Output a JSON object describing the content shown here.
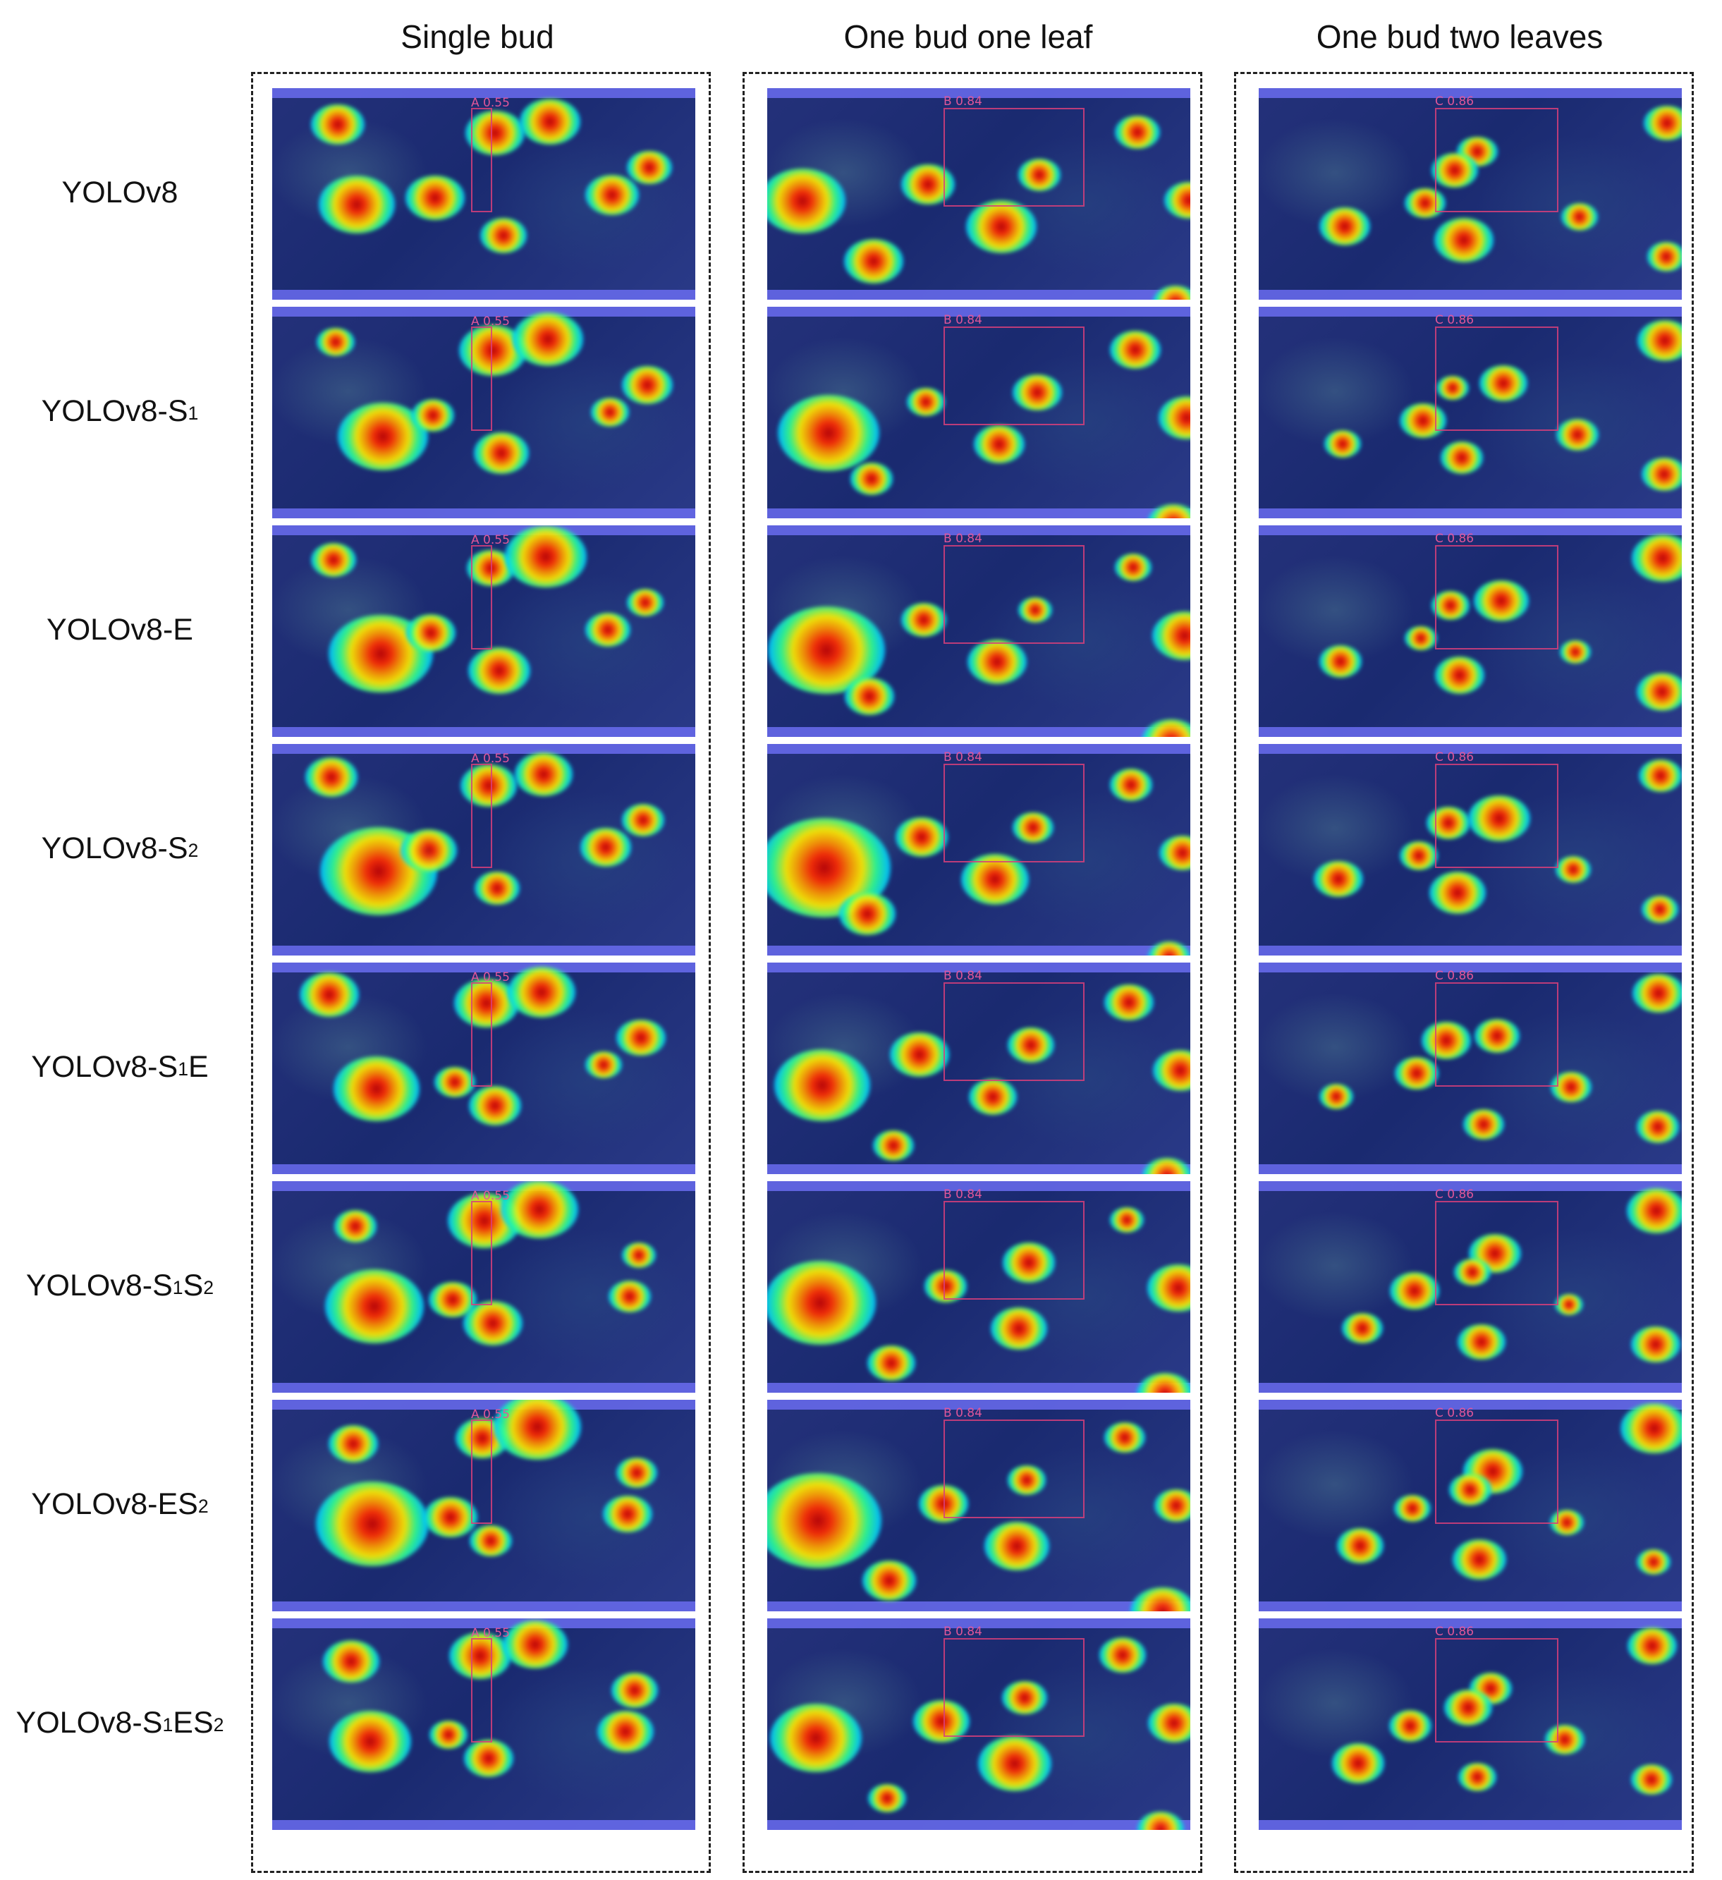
{
  "columns": [
    {
      "title": "Single bud",
      "det_label": "A 0.55"
    },
    {
      "title": "One bud one leaf",
      "det_label": "B 0.84"
    },
    {
      "title": "One bud two leaves",
      "det_label": "C 0.86"
    }
  ],
  "rows": [
    {
      "label": "YOLOv8"
    },
    {
      "label": "YOLOv8-S",
      "sub1": "1"
    },
    {
      "label": "YOLOv8-E"
    },
    {
      "label": "YOLOv8-S",
      "sub1": "2"
    },
    {
      "label": "YOLOv8-S",
      "sub1": "1",
      "mid": "E"
    },
    {
      "label": "YOLOv8-S",
      "sub1": "1",
      "mid": "S",
      "sub2": "2"
    },
    {
      "label": "YOLOv8-ES",
      "sub1": "2"
    },
    {
      "label": "YOLOv8-S",
      "sub1": "1",
      "mid": "ES",
      "sub2": "2"
    }
  ],
  "colors": {
    "border": "#222222",
    "detection_box": "#d83f7a",
    "background": "#ffffff"
  }
}
